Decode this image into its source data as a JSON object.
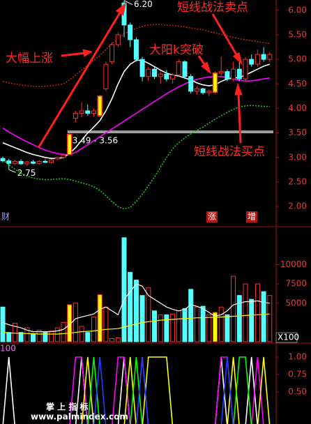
{
  "chart_data": [
    {
      "type": "candlestick",
      "categories": [
        null,
        null,
        null,
        null,
        null,
        null,
        null,
        null,
        null,
        null,
        null,
        null,
        null,
        null,
        null,
        null,
        null,
        null,
        null,
        null,
        null,
        null,
        null,
        null,
        null,
        null,
        null,
        null,
        null,
        null,
        null,
        null,
        null,
        null,
        null,
        null,
        null,
        null,
        null,
        null,
        null,
        null,
        null,
        null,
        null
      ],
      "open": [
        2.98,
        2.93,
        2.88,
        2.92,
        2.87,
        2.91,
        2.88,
        2.92,
        2.9,
        2.97,
        3.0,
        3.06,
        3.8,
        3.9,
        3.95,
        3.9,
        3.85,
        4.4,
        4.95,
        5.3,
        6.15,
        5.7,
        5.4,
        5.0,
        4.65,
        4.8,
        4.65,
        4.7,
        4.6,
        4.68,
        4.95,
        4.65,
        4.35,
        4.4,
        4.32,
        4.33,
        4.72,
        4.75,
        4.6,
        4.8,
        4.6,
        5.0,
        4.9,
        5.1,
        5.0
      ],
      "high": [
        3.02,
        2.97,
        2.95,
        2.96,
        2.93,
        2.95,
        2.94,
        2.96,
        2.97,
        3.02,
        3.08,
        3.49,
        3.95,
        4.12,
        4.08,
        4.0,
        4.28,
        4.95,
        5.35,
        5.55,
        6.2,
        5.75,
        5.45,
        5.05,
        4.85,
        4.85,
        4.75,
        4.78,
        4.72,
        5.0,
        4.98,
        4.7,
        4.45,
        4.42,
        4.38,
        4.75,
        5.05,
        4.8,
        4.95,
        5.0,
        5.05,
        5.1,
        5.2,
        5.25,
        5.15
      ],
      "low": [
        2.9,
        2.75,
        2.84,
        2.85,
        2.83,
        2.86,
        2.85,
        2.88,
        2.87,
        2.95,
        2.98,
        3.04,
        3.72,
        3.82,
        3.85,
        3.83,
        3.82,
        4.35,
        4.9,
        5.25,
        5.45,
        5.25,
        4.95,
        4.55,
        4.55,
        4.6,
        4.5,
        4.55,
        4.5,
        4.65,
        4.6,
        4.3,
        4.28,
        4.28,
        4.25,
        4.3,
        4.65,
        4.55,
        4.55,
        4.55,
        4.55,
        4.85,
        4.85,
        4.95,
        4.95
      ],
      "close": [
        2.93,
        2.88,
        2.92,
        2.87,
        2.91,
        2.88,
        2.92,
        2.9,
        2.95,
        3.0,
        3.05,
        3.47,
        3.9,
        3.95,
        3.9,
        3.95,
        4.25,
        4.9,
        5.3,
        5.5,
        5.7,
        5.4,
        5.0,
        4.65,
        4.8,
        4.65,
        4.7,
        4.6,
        4.68,
        4.95,
        4.65,
        4.35,
        4.4,
        4.32,
        4.35,
        4.72,
        4.75,
        4.6,
        4.8,
        4.6,
        5.0,
        4.9,
        5.1,
        5.0,
        5.1
      ],
      "up_color": "#ff3030",
      "down_color": "#54ffff",
      "highlight_color": "#ffff00",
      "highlighted": [
        11,
        16,
        35
      ],
      "lines": [
        {
          "color": "#ff00ff",
          "style": "solid",
          "values": [
            3.6,
            3.52,
            3.45,
            3.38,
            3.32,
            3.26,
            3.2,
            3.15,
            3.11,
            3.08,
            3.06,
            3.06,
            3.1,
            3.18,
            3.26,
            3.34,
            3.42,
            3.5,
            3.58,
            3.66,
            3.74,
            3.82,
            3.9,
            3.98,
            4.06,
            4.14,
            4.22,
            4.3,
            4.37,
            4.44,
            4.5,
            4.55,
            4.59,
            4.62,
            4.64,
            4.65,
            4.65,
            4.63,
            4.6,
            4.57,
            4.56,
            4.56,
            4.58,
            4.6,
            4.62
          ]
        },
        {
          "color": "#ffffff",
          "style": "solid",
          "values": [
            3.3,
            3.25,
            3.2,
            3.15,
            3.1,
            3.06,
            3.03,
            3.0,
            2.98,
            2.98,
            3.0,
            3.08,
            3.2,
            3.35,
            3.5,
            3.62,
            3.75,
            3.95,
            4.2,
            4.5,
            4.75,
            4.9,
            4.98,
            4.98,
            4.92,
            4.85,
            4.78,
            4.72,
            4.68,
            4.66,
            4.62,
            4.58,
            4.52,
            4.48,
            4.46,
            4.48,
            4.55,
            4.6,
            4.62,
            4.63,
            4.68,
            4.74,
            4.8,
            4.86,
            4.9
          ]
        },
        {
          "color": "#c02020",
          "style": "dashed",
          "values": [
            4.55,
            4.52,
            4.5,
            4.48,
            4.46,
            4.45,
            4.45,
            4.45,
            4.46,
            4.48,
            4.5,
            4.58,
            4.68,
            4.78,
            4.88,
            4.98,
            5.08,
            5.2,
            5.32,
            5.42,
            5.52,
            5.58,
            5.63,
            5.67,
            5.7,
            5.71,
            5.71,
            5.7,
            5.69,
            5.68,
            5.66,
            5.64,
            5.62,
            5.6,
            5.57,
            5.54,
            5.51,
            5.48,
            5.45,
            5.42,
            5.4,
            5.38,
            5.36,
            5.34,
            5.32
          ]
        },
        {
          "color": "#20c020",
          "style": "dashed",
          "values": [
            2.95,
            2.85,
            2.76,
            2.68,
            2.62,
            2.58,
            2.56,
            2.55,
            2.55,
            2.56,
            2.57,
            2.55,
            2.52,
            2.48,
            2.45,
            2.4,
            2.33,
            2.22,
            2.1,
            2.0,
            1.95,
            1.98,
            2.1,
            2.25,
            2.42,
            2.6,
            2.8,
            3.0,
            3.18,
            3.3,
            3.4,
            3.48,
            3.55,
            3.62,
            3.7,
            3.78,
            3.85,
            3.92,
            3.98,
            4.03,
            4.05,
            4.06,
            4.05,
            4.04,
            4.04
          ]
        }
      ],
      "level": {
        "value": 3.52,
        "color": "#a0a0a0",
        "label": "3.49 - 3.56"
      },
      "max_label": "6.20",
      "min_label": "2.75",
      "ylim": [
        1.66,
        6.21
      ],
      "yticks": [
        {
          "value": 2,
          "label": "2.00"
        },
        {
          "value": 2.5,
          "label": "2.50"
        },
        {
          "value": 3,
          "label": "3.00"
        },
        {
          "value": 3.5,
          "label": "3.50"
        },
        {
          "value": 4,
          "label": "4.00"
        },
        {
          "value": 4.5,
          "label": "4.50"
        },
        {
          "value": 5,
          "label": "5.00"
        },
        {
          "value": 5.5,
          "label": "5.50"
        },
        {
          "value": 6,
          "label": "6.00"
        }
      ],
      "annotations": [
        "大幅上涨",
        "大阳k突破",
        "短线战法卖点",
        "短线战法买点"
      ],
      "footer_labels": [
        "财",
        "涨",
        "增"
      ]
    },
    {
      "type": "bar",
      "values": [
        4500,
        1200,
        2400,
        1200,
        1800,
        1000,
        1500,
        1200,
        1400,
        1800,
        2500,
        4800,
        5000,
        2000,
        1200,
        3200,
        6100,
        4500,
        400,
        500,
        13500,
        9000,
        8000,
        6000,
        7000,
        4000,
        3500,
        3500,
        3600,
        4000,
        4300,
        6800,
        4500,
        4600,
        3500,
        3800,
        4500,
        3500,
        8500,
        6000,
        7500,
        5500,
        7500,
        6500,
        6000
      ],
      "lines": [
        {
          "color": "#ffffff",
          "values": [
            2500,
            2200,
            2000,
            1800,
            1500,
            1300,
            1300,
            1300,
            1300,
            1400,
            1600,
            2200,
            3000,
            3200,
            3400,
            3600,
            4200,
            4500,
            4000,
            3500,
            5500,
            6500,
            7500,
            7200,
            6000,
            5500,
            5000,
            4500,
            4200,
            4000,
            4200,
            4800,
            4600,
            4300,
            3800,
            3300,
            3500,
            4000,
            4800,
            5000,
            5200,
            5200,
            5300,
            5100,
            5000
          ]
        },
        {
          "color": "#ffff00",
          "values": [
            1200,
            1150,
            1100,
            1100,
            1050,
            1050,
            1000,
            1000,
            1000,
            1000,
            1050,
            1100,
            1200,
            1300,
            1350,
            1400,
            1500,
            1600,
            1650,
            1700,
            1900,
            2100,
            2300,
            2500,
            2600,
            2700,
            2800,
            2850,
            2900,
            2950,
            3000,
            3050,
            3100,
            3100,
            3150,
            3150,
            3200,
            3250,
            3300,
            3350,
            3400,
            3450,
            3500,
            3550,
            3600
          ]
        }
      ],
      "ylim": [
        0,
        14300
      ],
      "yticks": [
        5000,
        7500,
        10000
      ],
      "unit_label": "X100"
    },
    {
      "type": "line",
      "series": [
        {
          "color": "#ffffff",
          "values": [
            0,
            1,
            0,
            0,
            0,
            0,
            0,
            0,
            0,
            0,
            0,
            0,
            0,
            1,
            0,
            0,
            0,
            0,
            0,
            0,
            1,
            0,
            0,
            0,
            0,
            0,
            0,
            0,
            0,
            0,
            0,
            0,
            0,
            0,
            0,
            0,
            1,
            0,
            0,
            0,
            0,
            1,
            0,
            0,
            0
          ]
        },
        {
          "color": "#ff00ff",
          "values": [
            0,
            0,
            0,
            0,
            0,
            0,
            0,
            0,
            0,
            0,
            0,
            0,
            1,
            1,
            0,
            0,
            0,
            0,
            0,
            1,
            1,
            0,
            0,
            1,
            0,
            0,
            0,
            0,
            0,
            0,
            0,
            0,
            0,
            0,
            0,
            0,
            1,
            1,
            0,
            0,
            0,
            0,
            1,
            0,
            0
          ]
        },
        {
          "color": "#ffff00",
          "values": [
            0,
            0,
            0,
            0,
            0,
            0,
            0,
            0,
            0,
            0,
            0,
            0,
            0,
            0,
            1,
            0,
            0,
            0,
            0,
            0,
            0,
            1,
            0,
            0,
            1,
            1,
            1,
            1,
            0,
            0,
            0,
            0,
            0,
            0,
            0,
            0,
            0,
            0,
            1,
            0,
            0,
            0,
            0,
            1,
            0
          ]
        },
        {
          "color": "#00ff00",
          "values": [
            0,
            0,
            0,
            0,
            0,
            0,
            0,
            0,
            0,
            0,
            0,
            0,
            0,
            0,
            0,
            1,
            0,
            0,
            0,
            0,
            0,
            0,
            1,
            0,
            0,
            0,
            0,
            0,
            0,
            0,
            0,
            0,
            0,
            0,
            0,
            0,
            0,
            0,
            0,
            1,
            1,
            0,
            0,
            0,
            0
          ]
        },
        {
          "color": "#2040ff",
          "values": [
            0,
            0,
            0,
            0,
            0,
            0,
            0,
            0,
            0,
            0,
            0,
            0,
            0,
            0,
            0,
            0,
            1,
            0,
            0,
            0,
            0,
            0,
            0,
            1,
            0,
            0,
            0,
            0,
            0,
            0,
            0,
            0,
            0,
            0,
            0,
            0,
            0,
            1,
            0,
            0,
            0,
            0,
            0,
            0,
            0
          ]
        }
      ],
      "ylim": [
        0.06,
        1.17
      ],
      "yticks": [
        {
          "value": 0.5,
          "label": "0.50"
        },
        {
          "value": 0.75,
          "label": "0.75"
        },
        {
          "value": 1,
          "label": "1.00"
        }
      ],
      "corner_label": "100"
    }
  ],
  "watermark": {
    "title": "掌 上 指 标",
    "url": "www.palmindex.com"
  }
}
